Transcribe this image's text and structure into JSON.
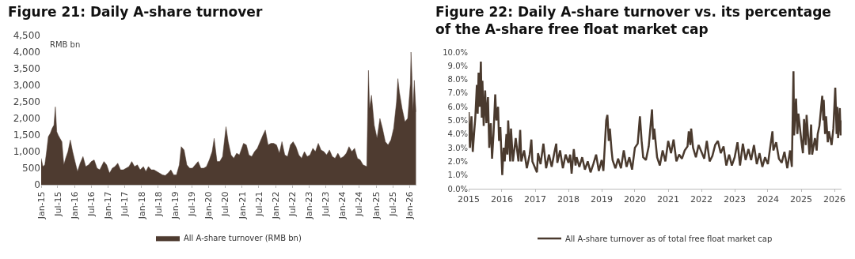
{
  "chart_data": [
    {
      "type": "area",
      "title": "Figure 21: Daily A-share turnover",
      "ylabel": "RMB bn",
      "legend": "bottom",
      "grid": false,
      "x": [
        "2015-01-01",
        "2015-01-20",
        "2015-02-10",
        "2015-03-01",
        "2015-03-20",
        "2015-04-10",
        "2015-05-01",
        "2015-05-20",
        "2015-06-05",
        "2015-06-20",
        "2015-07-05",
        "2015-07-25",
        "2015-08-15",
        "2015-09-05",
        "2015-09-25",
        "2015-10-20",
        "2015-11-15",
        "2015-12-10",
        "2016-01-05",
        "2016-02-01",
        "2016-03-01",
        "2016-04-01",
        "2016-05-01",
        "2016-06-01",
        "2016-07-01",
        "2016-08-01",
        "2016-09-01",
        "2016-10-01",
        "2016-11-15",
        "2016-12-15",
        "2017-01-15",
        "2017-02-15",
        "2017-03-15",
        "2017-04-15",
        "2017-05-15",
        "2017-06-15",
        "2017-07-15",
        "2017-08-15",
        "2017-09-15",
        "2017-10-15",
        "2017-11-15",
        "2017-12-15",
        "2018-01-20",
        "2018-02-15",
        "2018-03-15",
        "2018-04-15",
        "2018-05-15",
        "2018-06-15",
        "2018-07-15",
        "2018-08-15",
        "2018-09-15",
        "2018-10-15",
        "2018-11-15",
        "2018-12-15",
        "2019-01-15",
        "2019-02-15",
        "2019-03-08",
        "2019-04-08",
        "2019-05-08",
        "2019-06-08",
        "2019-07-08",
        "2019-08-08",
        "2019-09-08",
        "2019-10-08",
        "2019-11-08",
        "2019-12-08",
        "2020-01-08",
        "2020-02-08",
        "2020-03-01",
        "2020-04-01",
        "2020-05-01",
        "2020-06-01",
        "2020-07-08",
        "2020-08-01",
        "2020-09-01",
        "2020-10-01",
        "2020-11-01",
        "2020-12-01",
        "2021-01-15",
        "2021-02-15",
        "2021-03-15",
        "2021-04-15",
        "2021-05-15",
        "2021-06-15",
        "2021-07-15",
        "2021-08-15",
        "2021-09-10",
        "2021-10-10",
        "2021-11-10",
        "2021-12-10",
        "2022-01-10",
        "2022-02-10",
        "2022-03-10",
        "2022-04-10",
        "2022-05-10",
        "2022-06-10",
        "2022-07-10",
        "2022-08-10",
        "2022-09-10",
        "2022-10-10",
        "2022-11-10",
        "2022-12-10",
        "2023-01-10",
        "2023-02-10",
        "2023-03-10",
        "2023-04-10",
        "2023-05-10",
        "2023-06-10",
        "2023-07-10",
        "2023-08-10",
        "2023-09-10",
        "2023-10-10",
        "2023-11-10",
        "2023-12-10",
        "2024-01-10",
        "2024-02-10",
        "2024-03-10",
        "2024-04-10",
        "2024-05-10",
        "2024-06-10",
        "2024-07-10",
        "2024-08-10",
        "2024-09-20",
        "2024-10-08",
        "2024-10-20",
        "2024-11-10",
        "2024-12-10",
        "2025-01-10",
        "2025-02-10",
        "2025-03-10",
        "2025-04-10",
        "2025-05-10",
        "2025-06-10",
        "2025-07-10",
        "2025-08-10",
        "2025-08-25",
        "2025-09-10",
        "2025-10-10",
        "2025-11-10",
        "2025-12-10",
        "2026-01-08",
        "2026-01-15",
        "2026-01-25",
        "2026-02-05",
        "2026-02-20",
        "2026-03-10"
      ],
      "series": [
        {
          "name": "All A-share turnover (RMB bn)",
          "color": "#4e3b30",
          "values": [
            800,
            550,
            600,
            1000,
            1450,
            1550,
            1700,
            1800,
            2350,
            1600,
            1500,
            1400,
            1300,
            600,
            800,
            1000,
            1350,
            1000,
            700,
            400,
            650,
            850,
            550,
            600,
            700,
            750,
            500,
            450,
            700,
            600,
            350,
            500,
            550,
            650,
            450,
            450,
            500,
            550,
            700,
            550,
            600,
            450,
            550,
            400,
            550,
            450,
            450,
            400,
            350,
            300,
            280,
            350,
            450,
            300,
            300,
            600,
            1150,
            1050,
            600,
            500,
            500,
            600,
            700,
            500,
            500,
            550,
            750,
            1000,
            1400,
            700,
            700,
            850,
            1750,
            1300,
            900,
            800,
            950,
            900,
            1250,
            1200,
            900,
            850,
            1000,
            1100,
            1300,
            1500,
            1650,
            1200,
            1250,
            1250,
            1200,
            950,
            1300,
            900,
            850,
            1200,
            1300,
            1150,
            900,
            800,
            1000,
            850,
            900,
            1100,
            1000,
            1250,
            1050,
            1000,
            900,
            1050,
            850,
            800,
            950,
            800,
            850,
            950,
            1150,
            1000,
            1100,
            800,
            750,
            600,
            550,
            3450,
            2300,
            2700,
            1800,
            1400,
            2000,
            1700,
            1300,
            1200,
            1350,
            1700,
            2500,
            3200,
            2800,
            2300,
            1900,
            2000,
            3050,
            4000,
            3300,
            2200,
            3150,
            2200
          ]
        }
      ],
      "xlim": [
        "2015-01-01",
        "2026-03-15"
      ],
      "xticks": [
        {
          "value": "2015-01-01",
          "label": "Jan-15"
        },
        {
          "value": "2015-07-01",
          "label": "Jul-15"
        },
        {
          "value": "2016-01-01",
          "label": "Jan-16"
        },
        {
          "value": "2016-07-01",
          "label": "Jul-16"
        },
        {
          "value": "2017-01-01",
          "label": "Jan-17"
        },
        {
          "value": "2017-07-01",
          "label": "Jul-17"
        },
        {
          "value": "2018-01-01",
          "label": "Jan-18"
        },
        {
          "value": "2018-07-01",
          "label": "Jul-18"
        },
        {
          "value": "2019-01-01",
          "label": "Jan-19"
        },
        {
          "value": "2019-07-01",
          "label": "Jul-19"
        },
        {
          "value": "2020-01-01",
          "label": "Jan-20"
        },
        {
          "value": "2020-07-01",
          "label": "Jul-20"
        },
        {
          "value": "2021-01-01",
          "label": "Jan-21"
        },
        {
          "value": "2021-07-01",
          "label": "Jul-21"
        },
        {
          "value": "2022-01-01",
          "label": "Jan-22"
        },
        {
          "value": "2022-07-01",
          "label": "Jul-22"
        },
        {
          "value": "2023-01-01",
          "label": "Jan-23"
        },
        {
          "value": "2023-07-01",
          "label": "Jul-23"
        },
        {
          "value": "2024-01-01",
          "label": "Jan-24"
        },
        {
          "value": "2024-07-01",
          "label": "Jul-24"
        },
        {
          "value": "2025-01-01",
          "label": "Jan-25"
        },
        {
          "value": "2025-07-01",
          "label": "Jul-25"
        },
        {
          "value": "2026-01-01",
          "label": "Jan-26"
        }
      ],
      "ylim": [
        0,
        4500
      ],
      "yticks": [
        0,
        500,
        {
          "value": 1000,
          "label": "1,000"
        },
        {
          "value": 1500,
          "label": "1,500"
        },
        {
          "value": 2000,
          "label": "2,000"
        },
        {
          "value": 2500,
          "label": "2,500"
        },
        {
          "value": 3000,
          "label": "3,000"
        },
        {
          "value": 3500,
          "label": "3,500"
        },
        {
          "value": 4000,
          "label": "4,000"
        },
        {
          "value": 4500,
          "label": "4,500"
        }
      ]
    },
    {
      "type": "line",
      "title": "Figure 22: Daily A-share turnover vs. its percentage of the A-share free float market cap",
      "legend": "bottom",
      "grid": false,
      "x": [
        "2015-01-01",
        "2015-01-15",
        "2015-02-01",
        "2015-02-15",
        "2015-03-01",
        "2015-03-15",
        "2015-04-01",
        "2015-04-10",
        "2015-04-20",
        "2015-05-01",
        "2015-05-15",
        "2015-05-25",
        "2015-06-01",
        "2015-06-15",
        "2015-07-01",
        "2015-07-15",
        "2015-08-01",
        "2015-08-15",
        "2015-09-01",
        "2015-09-15",
        "2015-10-01",
        "2015-10-20",
        "2015-11-01",
        "2015-11-20",
        "2015-12-01",
        "2015-12-15",
        "2016-01-05",
        "2016-01-20",
        "2016-02-01",
        "2016-02-20",
        "2016-03-01",
        "2016-03-10",
        "2016-04-01",
        "2016-04-10",
        "2016-05-01",
        "2016-06-01",
        "2016-07-01",
        "2016-07-20",
        "2016-08-01",
        "2016-09-01",
        "2016-10-01",
        "2016-11-01",
        "2016-11-20",
        "2016-12-01",
        "2017-01-20",
        "2017-02-01",
        "2017-03-01",
        "2017-04-01",
        "2017-05-01",
        "2017-06-01",
        "2017-07-01",
        "2017-08-01",
        "2017-08-20",
        "2017-09-01",
        "2017-10-01",
        "2017-11-01",
        "2017-12-01",
        "2018-01-01",
        "2018-01-20",
        "2018-02-05",
        "2018-03-01",
        "2018-03-20",
        "2018-04-01",
        "2018-05-01",
        "2018-06-01",
        "2018-07-01",
        "2018-08-01",
        "2018-09-01",
        "2018-10-01",
        "2018-11-01",
        "2018-12-01",
        "2019-01-01",
        "2019-01-20",
        "2019-02-20",
        "2019-03-05",
        "2019-03-20",
        "2019-04-01",
        "2019-04-20",
        "2019-05-01",
        "2019-06-01",
        "2019-07-01",
        "2019-08-01",
        "2019-09-01",
        "2019-10-01",
        "2019-11-01",
        "2019-12-01",
        "2020-01-01",
        "2020-02-01",
        "2020-02-25",
        "2020-03-15",
        "2020-04-01",
        "2020-05-01",
        "2020-06-01",
        "2020-07-07",
        "2020-07-20",
        "2020-08-01",
        "2020-09-01",
        "2020-10-01",
        "2020-11-01",
        "2020-12-01",
        "2021-01-01",
        "2021-02-01",
        "2021-03-01",
        "2021-04-01",
        "2021-05-01",
        "2021-06-01",
        "2021-07-01",
        "2021-08-01",
        "2021-08-15",
        "2021-09-01",
        "2021-09-10",
        "2021-10-01",
        "2021-11-01",
        "2021-12-01",
        "2022-01-01",
        "2022-02-01",
        "2022-03-01",
        "2022-04-01",
        "2022-05-01",
        "2022-06-01",
        "2022-07-01",
        "2022-08-01",
        "2022-09-01",
        "2022-10-01",
        "2022-11-01",
        "2022-12-01",
        "2023-01-01",
        "2023-02-01",
        "2023-03-01",
        "2023-04-01",
        "2023-05-01",
        "2023-06-01",
        "2023-07-01",
        "2023-08-01",
        "2023-09-01",
        "2023-10-01",
        "2023-11-01",
        "2023-12-01",
        "2024-01-01",
        "2024-02-01",
        "2024-02-20",
        "2024-03-01",
        "2024-04-01",
        "2024-05-01",
        "2024-06-01",
        "2024-07-01",
        "2024-08-01",
        "2024-09-01",
        "2024-09-20",
        "2024-10-08",
        "2024-10-15",
        "2024-11-05",
        "2024-11-20",
        "2024-12-01",
        "2025-01-01",
        "2025-01-20",
        "2025-02-01",
        "2025-02-20",
        "2025-03-01",
        "2025-04-01",
        "2025-04-20",
        "2025-05-01",
        "2025-06-01",
        "2025-06-20",
        "2025-07-01",
        "2025-07-20",
        "2025-08-20",
        "2025-09-01",
        "2025-09-05",
        "2025-09-20",
        "2025-10-01",
        "2025-10-20",
        "2025-11-01",
        "2025-12-01",
        "2025-12-20",
        "2026-01-10",
        "2026-01-25",
        "2026-02-01",
        "2026-02-10",
        "2026-03-01",
        "2026-03-10",
        "2026-03-15"
      ],
      "series": [
        {
          "name": "All A-share turnover as of total free float market cap",
          "color": "#4a3a2e",
          "values": [
            5.6,
            3.0,
            5.3,
            2.7,
            4.0,
            5.2,
            7.6,
            5.5,
            8.5,
            6.0,
            9.3,
            5.2,
            7.9,
            4.6,
            7.2,
            4.8,
            6.7,
            3.0,
            4.8,
            2.2,
            4.0,
            6.9,
            5.0,
            6.0,
            3.5,
            4.5,
            1.0,
            3.0,
            2.0,
            4.0,
            2.5,
            5.0,
            2.0,
            4.4,
            2.0,
            3.7,
            2.0,
            4.3,
            2.0,
            2.8,
            1.5,
            2.5,
            3.6,
            2.0,
            1.2,
            2.6,
            1.8,
            3.3,
            1.5,
            2.5,
            1.6,
            2.7,
            3.3,
            1.9,
            2.8,
            1.5,
            2.5,
            1.9,
            2.5,
            1.1,
            2.9,
            1.7,
            2.3,
            1.6,
            2.3,
            1.4,
            2.0,
            1.2,
            1.8,
            2.5,
            1.3,
            2.1,
            1.3,
            5.0,
            5.4,
            3.5,
            4.4,
            2.8,
            2.1,
            1.5,
            2.2,
            1.5,
            2.8,
            1.6,
            2.3,
            1.4,
            3.0,
            3.3,
            5.3,
            3.5,
            2.3,
            2.1,
            3.1,
            5.8,
            3.6,
            4.4,
            2.3,
            1.7,
            2.8,
            2.0,
            3.5,
            2.6,
            3.6,
            2.0,
            2.5,
            2.2,
            2.8,
            3.1,
            4.2,
            3.2,
            4.4,
            3.0,
            2.3,
            3.2,
            2.7,
            2.2,
            3.5,
            2.0,
            2.4,
            3.2,
            3.5,
            2.6,
            3.1,
            1.7,
            2.5,
            1.7,
            2.3,
            3.4,
            1.7,
            3.3,
            2.1,
            2.9,
            2.1,
            3.2,
            1.8,
            2.6,
            1.6,
            2.3,
            1.8,
            3.3,
            4.2,
            2.8,
            3.4,
            2.2,
            1.9,
            2.7,
            1.5,
            2.8,
            1.6,
            8.6,
            3.9,
            6.6,
            4.0,
            5.5,
            3.6,
            2.6,
            5.1,
            3.2,
            5.4,
            2.5,
            4.7,
            2.5,
            3.7,
            2.8,
            4.0,
            4.6,
            6.8,
            5.0,
            6.5,
            4.0,
            5.3,
            3.4,
            4.2,
            3.2,
            4.4,
            7.4,
            4.0,
            6.0,
            3.7,
            5.9,
            3.9,
            5.0
          ]
        }
      ],
      "xlim": [
        "2015-01-01",
        "2026-03-20"
      ],
      "xticks": [
        {
          "value": "2015-01-01",
          "label": "2015"
        },
        {
          "value": "2016-01-01",
          "label": "2016"
        },
        {
          "value": "2017-01-01",
          "label": "2017"
        },
        {
          "value": "2018-01-01",
          "label": "2018"
        },
        {
          "value": "2019-01-01",
          "label": "2019"
        },
        {
          "value": "2020-01-01",
          "label": "2020"
        },
        {
          "value": "2021-01-01",
          "label": "2021"
        },
        {
          "value": "2022-01-01",
          "label": "2022"
        },
        {
          "value": "2023-01-01",
          "label": "2023"
        },
        {
          "value": "2024-01-01",
          "label": "2024"
        },
        {
          "value": "2025-01-01",
          "label": "2025"
        },
        {
          "value": "2026-01-01",
          "label": "2026"
        }
      ],
      "ylim": [
        0,
        10
      ],
      "yticks": [
        {
          "value": 0,
          "label": "0.0%"
        },
        {
          "value": 1,
          "label": "1.0%"
        },
        {
          "value": 2,
          "label": "2.0%"
        },
        {
          "value": 3,
          "label": "3.0%"
        },
        {
          "value": 4,
          "label": "4.0%"
        },
        {
          "value": 5,
          "label": "5.0%"
        },
        {
          "value": 6,
          "label": "6.0%"
        },
        {
          "value": 7,
          "label": "7.0%"
        },
        {
          "value": 8,
          "label": "8.0%"
        },
        {
          "value": 9,
          "label": "9.0%"
        },
        {
          "value": 10,
          "label": "10.0%"
        }
      ]
    }
  ]
}
